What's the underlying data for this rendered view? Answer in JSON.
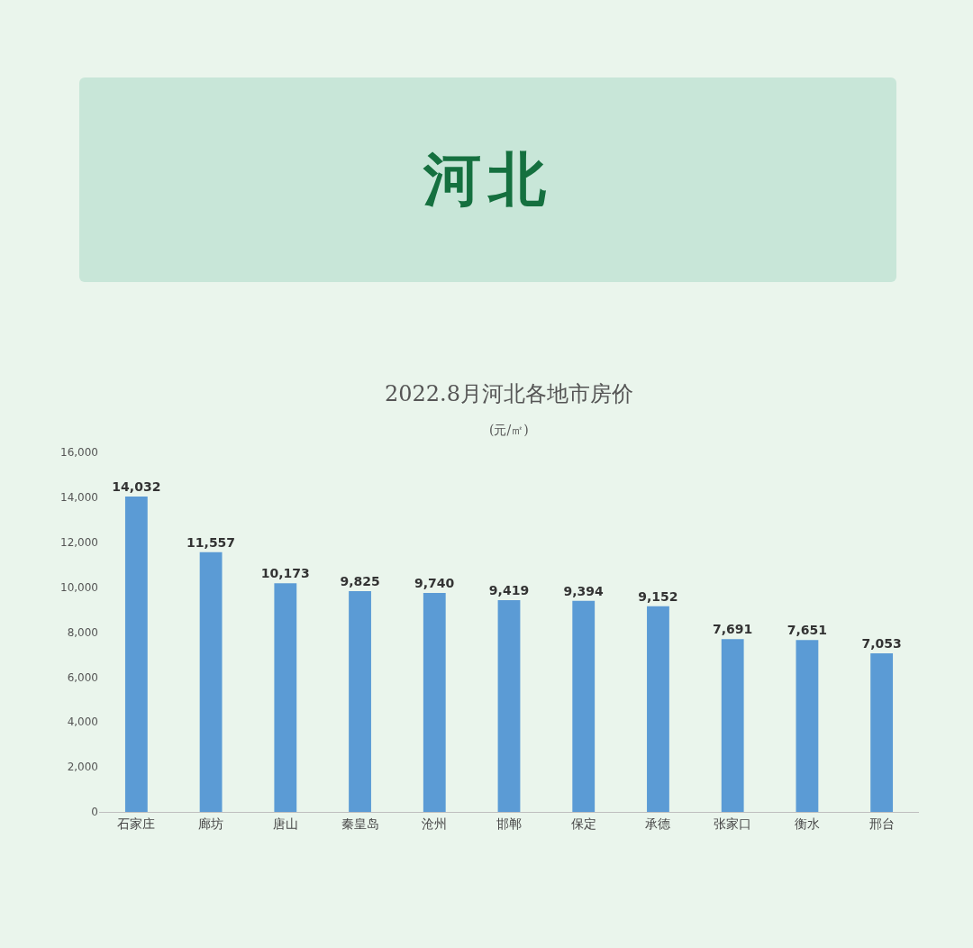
{
  "chart_data": {
    "type": "bar",
    "title": "河北",
    "subtitle": "2022.8月河北各地市房价",
    "annotations": [
      "(元/㎡)"
    ],
    "categories": [
      "石家庄",
      "廊坊",
      "唐山",
      "秦皇岛",
      "沧州",
      "邯郸",
      "保定",
      "承德",
      "张家口",
      "衡水",
      "邢台"
    ],
    "values": [
      14032,
      11557,
      10173,
      9825,
      9740,
      9419,
      9394,
      9152,
      7691,
      7651,
      7053
    ],
    "color": "#5b9bd5",
    "ylim": [
      0,
      16000
    ],
    "yticks": [
      0,
      {
        "value": 2000,
        "label": "2,000"
      },
      {
        "value": 4000,
        "label": "4,000"
      },
      {
        "value": 6000,
        "label": "6,000"
      },
      {
        "value": 8000,
        "label": "8,000"
      },
      {
        "value": 10000,
        "label": "10,000"
      },
      {
        "value": 12000,
        "label": "12,000"
      },
      {
        "value": 14000,
        "label": "14,000"
      },
      {
        "value": 16000,
        "label": "16,000"
      }
    ],
    "value_labels": [
      "14,032",
      "11,557",
      "10,173",
      "9,825",
      "9,740",
      "9,419",
      "9,394",
      "9,152",
      "7,691",
      "7,651",
      "7,053"
    ],
    "grid": false
  }
}
